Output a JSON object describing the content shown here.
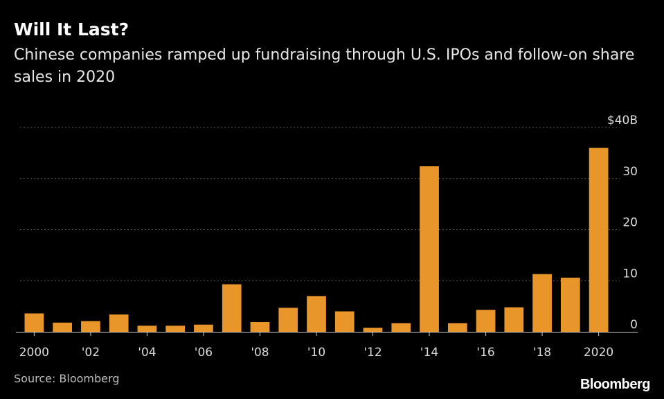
{
  "chart_data": {
    "type": "bar",
    "title": "Will It Last?",
    "subtitle": "Chinese companies ramped up fundraising through U.S. IPOs and follow-on share sales in 2020",
    "categories": [
      "2000",
      "2001",
      "2002",
      "2003",
      "2004",
      "2005",
      "2006",
      "2007",
      "2008",
      "2009",
      "2010",
      "2011",
      "2012",
      "2013",
      "2014",
      "2015",
      "2016",
      "2017",
      "2018",
      "2019",
      "2020"
    ],
    "values": [
      3.6,
      1.8,
      2.1,
      3.4,
      1.2,
      1.2,
      1.4,
      9.3,
      1.9,
      4.7,
      7.0,
      4.0,
      0.8,
      1.7,
      32.4,
      1.7,
      4.3,
      4.8,
      11.3,
      10.6,
      36.0
    ],
    "x_tick_labels": [
      {
        "category": "2000",
        "label": "2000"
      },
      {
        "category": "2002",
        "label": "'02"
      },
      {
        "category": "2004",
        "label": "'04"
      },
      {
        "category": "2006",
        "label": "'06"
      },
      {
        "category": "2008",
        "label": "'08"
      },
      {
        "category": "2010",
        "label": "'10"
      },
      {
        "category": "2012",
        "label": "'12"
      },
      {
        "category": "2014",
        "label": "'14"
      },
      {
        "category": "2016",
        "label": "'16"
      },
      {
        "category": "2018",
        "label": "'18"
      },
      {
        "category": "2020",
        "label": "2020"
      }
    ],
    "y_ticks": [
      {
        "value": 0,
        "label": "0"
      },
      {
        "value": 10,
        "label": "10"
      },
      {
        "value": 20,
        "label": "20"
      },
      {
        "value": 30,
        "label": "30"
      },
      {
        "value": 40,
        "label": "$40B"
      }
    ],
    "ylim": [
      0,
      40
    ],
    "xlabel": "",
    "ylabel": "",
    "grid": true,
    "legend": "none",
    "colors": {
      "bar": "#e8952a",
      "background": "#000000",
      "grid": "#5a5a5a",
      "axis": "#cccccc",
      "tick_text": "#dcdcdc"
    }
  },
  "source": "Source: Bloomberg",
  "brand": "Bloomberg"
}
